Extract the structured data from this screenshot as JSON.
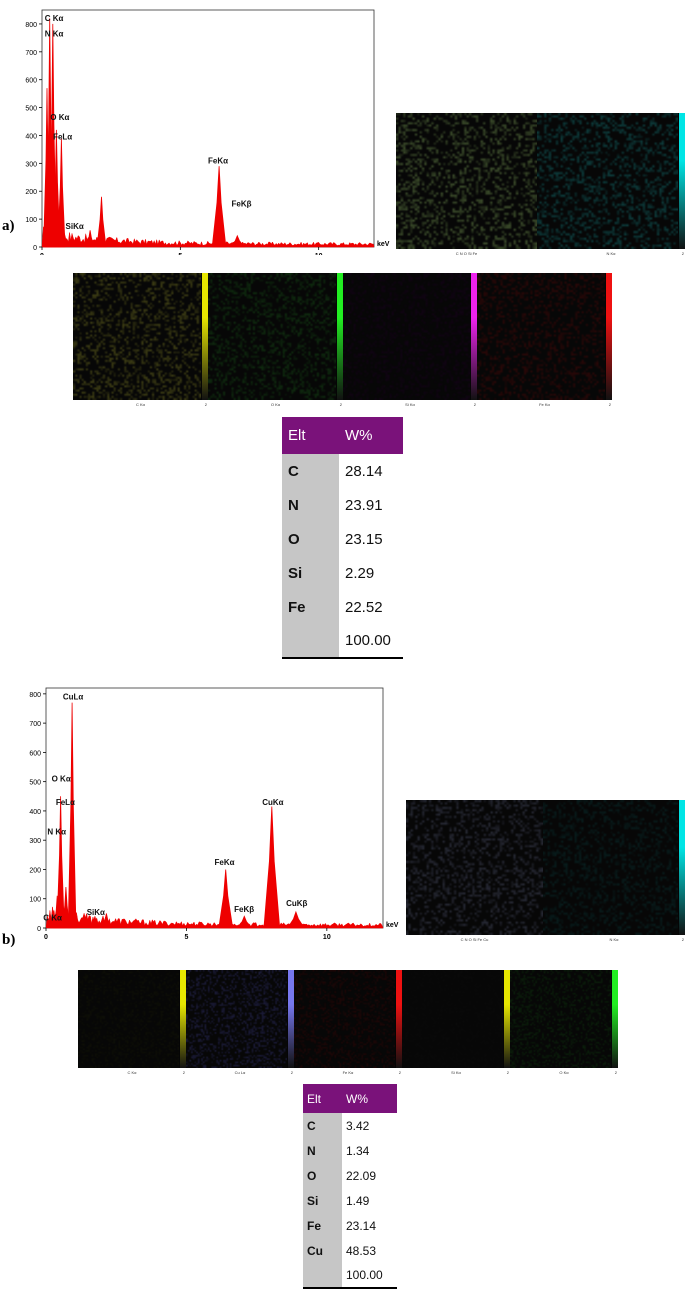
{
  "panels": [
    {
      "label": "a)",
      "chart_data": {
        "type": "line",
        "x_unit": "keV",
        "xlim": [
          0,
          12
        ],
        "ylim": [
          0,
          850
        ],
        "x_ticks": [
          0,
          5,
          10
        ],
        "y_ticks": [
          0,
          100,
          200,
          300,
          400,
          500,
          600,
          700,
          800
        ],
        "peaks": [
          {
            "x": 0.18,
            "y": 570
          },
          {
            "x": 0.28,
            "y": 820
          },
          {
            "x": 0.39,
            "y": 800
          },
          {
            "x": 0.52,
            "y": 420
          },
          {
            "x": 0.7,
            "y": 390
          },
          {
            "x": 1.74,
            "y": 60
          },
          {
            "x": 2.15,
            "y": 180
          },
          {
            "x": 6.4,
            "y": 290
          },
          {
            "x": 7.06,
            "y": 40
          }
        ],
        "annotations": [
          {
            "text": "C Kα",
            "x": 0.1,
            "y": 810
          },
          {
            "text": "N Kα",
            "x": 0.1,
            "y": 755
          },
          {
            "text": "O Kα",
            "x": 0.3,
            "y": 455
          },
          {
            "text": "FeLα",
            "x": 0.4,
            "y": 385
          },
          {
            "text": "SiKα",
            "x": 0.85,
            "y": 65
          },
          {
            "text": "FeKα",
            "x": 6.0,
            "y": 300
          },
          {
            "text": "FeKβ",
            "x": 6.85,
            "y": 145
          }
        ]
      },
      "maps_top": [
        {
          "caption": "C  N  O  Si Fe",
          "num": "",
          "color": "#3a4a2a",
          "bar": ""
        },
        {
          "caption": "N Kα",
          "num": "2",
          "color": "#0d3a3a",
          "bar": "#00e5e5"
        }
      ],
      "maps_bottom": [
        {
          "caption": "C Kα",
          "num": "2",
          "color": "#3b3b14",
          "bar": "#e6e600"
        },
        {
          "caption": "O Kα",
          "num": "2",
          "color": "#0f2a0f",
          "bar": "#22ee22"
        },
        {
          "caption": "Si Kα",
          "num": "2",
          "color": "#110414",
          "bar": "#ee22ee"
        },
        {
          "caption": "Fe Kα",
          "num": "2",
          "color": "#2a0808",
          "bar": "#ee1111"
        }
      ],
      "table": {
        "headers": [
          "Elt",
          "W%"
        ],
        "rows": [
          [
            "C",
            "28.14"
          ],
          [
            "N",
            "23.91"
          ],
          [
            "O",
            "23.15"
          ],
          [
            "Si",
            "2.29"
          ],
          [
            "Fe",
            "22.52"
          ],
          [
            "",
            "100.00"
          ]
        ]
      }
    },
    {
      "label": "b)",
      "chart_data": {
        "type": "line",
        "x_unit": "keV",
        "xlim": [
          0,
          12
        ],
        "ylim": [
          0,
          820
        ],
        "x_ticks": [
          0,
          5,
          10
        ],
        "y_ticks": [
          0,
          100,
          200,
          300,
          400,
          500,
          600,
          700,
          800
        ],
        "peaks": [
          {
            "x": 0.28,
            "y": 60
          },
          {
            "x": 0.4,
            "y": 110
          },
          {
            "x": 0.52,
            "y": 450
          },
          {
            "x": 0.71,
            "y": 140
          },
          {
            "x": 0.93,
            "y": 770
          },
          {
            "x": 1.74,
            "y": 40
          },
          {
            "x": 2.15,
            "y": 50
          },
          {
            "x": 6.4,
            "y": 200
          },
          {
            "x": 7.06,
            "y": 40
          },
          {
            "x": 8.04,
            "y": 415
          },
          {
            "x": 8.9,
            "y": 55
          }
        ],
        "annotations": [
          {
            "text": "CuLα",
            "x": 0.6,
            "y": 780
          },
          {
            "text": "O Kα",
            "x": 0.2,
            "y": 500
          },
          {
            "text": "FeLα",
            "x": 0.35,
            "y": 420
          },
          {
            "text": "N Kα",
            "x": 0.05,
            "y": 320
          },
          {
            "text": "C Kα",
            "x": -0.1,
            "y": 25
          },
          {
            "text": "SiKα",
            "x": 1.45,
            "y": 45
          },
          {
            "text": "FeKα",
            "x": 6.0,
            "y": 215
          },
          {
            "text": "FeKβ",
            "x": 6.7,
            "y": 55
          },
          {
            "text": "CuKα",
            "x": 7.7,
            "y": 420
          },
          {
            "text": "CuKβ",
            "x": 8.55,
            "y": 75
          }
        ]
      },
      "maps_top": [
        {
          "caption": "C  N  O  Si Fe Cu",
          "num": "",
          "color": "#262833",
          "bar": ""
        },
        {
          "caption": "N Kα",
          "num": "2",
          "color": "#081c1c",
          "bar": "#00e5e5"
        }
      ],
      "maps_bottom": [
        {
          "caption": "C Kα",
          "num": "2",
          "color": "#0e0f07",
          "bar": "#e6e600"
        },
        {
          "caption": "Cu Lα",
          "num": "2",
          "color": "#1b1b38",
          "bar": "#7777ee"
        },
        {
          "caption": "Fe Kα",
          "num": "2",
          "color": "#1e0707",
          "bar": "#ee1111"
        },
        {
          "caption": "Si Kα",
          "num": "2",
          "color": "#0a0a0a",
          "bar": "#e6e600"
        },
        {
          "caption": "O Kα",
          "num": "2",
          "color": "#0b1e0b",
          "bar": "#22ee22"
        }
      ],
      "table": {
        "headers": [
          "Elt",
          "W%"
        ],
        "rows": [
          [
            "C",
            "3.42"
          ],
          [
            "N",
            "1.34"
          ],
          [
            "O",
            "22.09"
          ],
          [
            "Si",
            "1.49"
          ],
          [
            "Fe",
            "23.14"
          ],
          [
            "Cu",
            "48.53"
          ],
          [
            "",
            "100.00"
          ]
        ]
      }
    }
  ]
}
